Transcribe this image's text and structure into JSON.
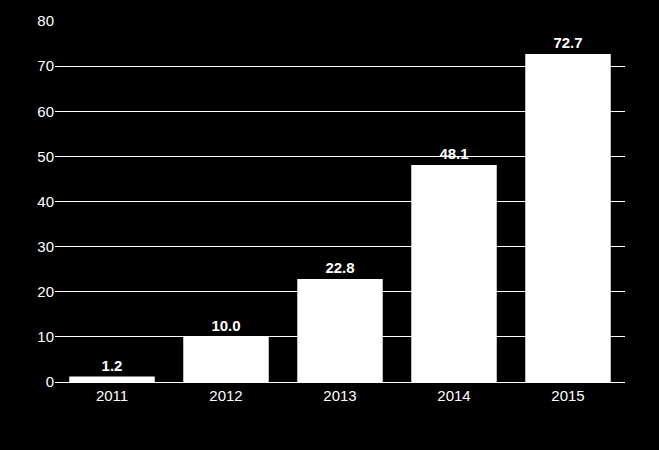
{
  "chart_data": {
    "type": "bar",
    "categories": [
      "2011",
      "2012",
      "2013",
      "2014",
      "2015"
    ],
    "values": [
      1.2,
      10.0,
      22.8,
      48.1,
      72.7
    ],
    "value_labels": [
      "1.2",
      "10.0",
      "22.8",
      "48.1",
      "72.7"
    ],
    "data_labels": true,
    "color": "#ffffff",
    "ylim": [
      0,
      80
    ],
    "yticks": [
      0,
      10,
      20,
      30,
      40,
      50,
      60,
      70,
      80
    ],
    "grid": true
  }
}
